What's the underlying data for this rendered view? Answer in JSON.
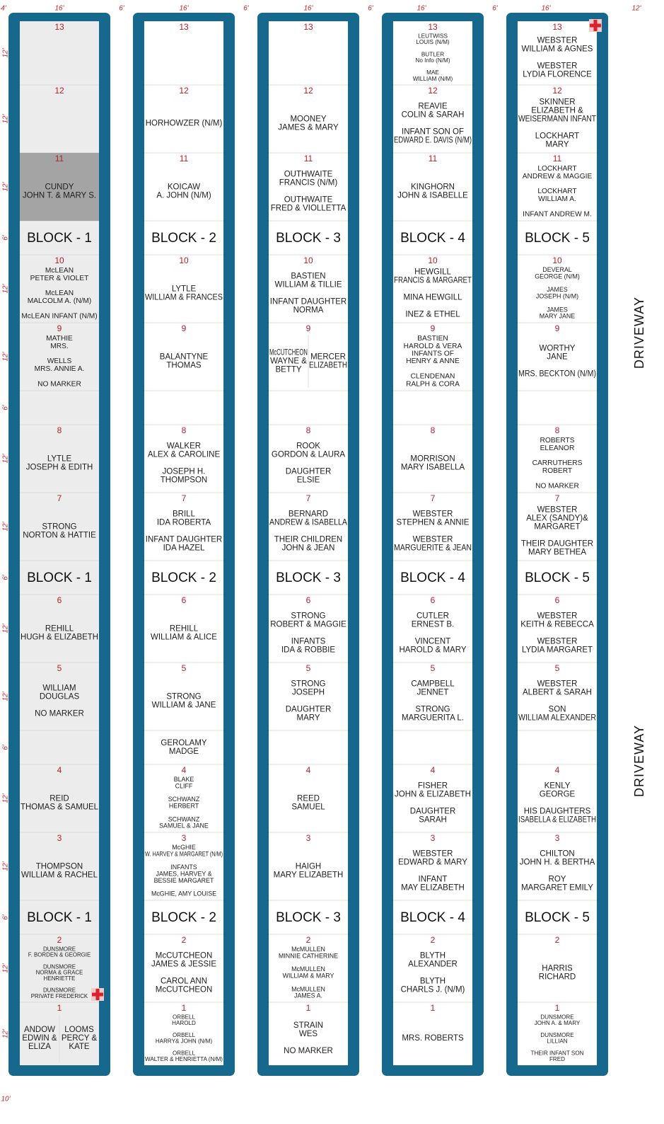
{
  "dimensions": {
    "top": [
      "4'",
      "16'",
      "6'",
      "16'",
      "6'",
      "16'",
      "6'",
      "16'",
      "6'",
      "16'",
      "12'"
    ],
    "side": [
      "12'",
      "12'",
      "12'",
      "6'",
      "12'",
      "12'",
      "6'",
      "12'",
      "12'",
      "6'",
      "12'",
      "12'",
      "6'",
      "12'",
      "12'",
      "6'",
      "12'",
      "12'"
    ],
    "bottom": "10'"
  },
  "driveway": "DRIVEWAY",
  "blocks": [
    {
      "label": "BLOCK - 1",
      "lots": [
        {
          "number": 13
        },
        {
          "number": 12
        },
        {
          "number": 11,
          "groups": [
            [
              "CUNDY",
              "JOHN T. & MARY S."
            ]
          ]
        },
        {
          "number": 10,
          "groups": [
            [
              "McLEAN",
              "PETER & VIOLET"
            ],
            [
              "McLEAN",
              "MALCOLM A. (N/M)"
            ],
            [
              "McLEAN INFANT (N/M)"
            ]
          ]
        },
        {
          "number": 9,
          "groups": [
            [
              "MATHIE",
              "MRS."
            ],
            [
              "WELLS",
              "MRS. ANNIE A."
            ],
            [
              "NO MARKER"
            ]
          ]
        },
        {
          "number": 8,
          "groups": [
            [
              "LYTLE",
              "JOSEPH & EDITH"
            ]
          ]
        },
        {
          "number": 7,
          "groups": [
            [
              "STRONG",
              "NORTON & HATTIE"
            ]
          ]
        },
        {
          "number": 6,
          "groups": [
            [
              "REHILL",
              "HUGH & ELIZABETH"
            ]
          ]
        },
        {
          "number": 5,
          "groups": [
            [
              "WILLIAM",
              "DOUGLAS"
            ],
            [
              "NO MARKER"
            ]
          ]
        },
        {
          "number": 4,
          "groups": [
            [
              "REID",
              "THOMAS & SAMUEL"
            ]
          ]
        },
        {
          "number": 3,
          "groups": [
            [
              "THOMPSON",
              "WILLIAM & RACHEL"
            ]
          ]
        },
        {
          "number": 2,
          "groups": [
            [
              "DUNSMORE",
              "F. BORDEN & GEORGIE"
            ],
            [
              "DUNSMORE",
              "NORMA & GRACE",
              "HENRIETTE"
            ],
            [
              "DUNSMORE",
              "PRIVATE FREDERICK"
            ]
          ]
        },
        {
          "number": 1,
          "sides": [
            [
              "ANDOW",
              "EDWIN &",
              "ELIZA"
            ],
            [
              "LOOMS",
              "PERCY &",
              "KATE"
            ]
          ]
        }
      ]
    },
    {
      "label": "BLOCK - 2",
      "lots": [
        {
          "number": 13
        },
        {
          "number": 12,
          "groups": [
            [
              "HORHOWZER (N/M)"
            ]
          ]
        },
        {
          "number": 11,
          "groups": [
            [
              "KOICAW",
              "A. JOHN (N/M)"
            ]
          ]
        },
        {
          "number": 10,
          "groups": [
            [
              "LYTLE",
              "WILLIAM & FRANCES"
            ]
          ]
        },
        {
          "number": 9,
          "groups": [
            [
              "BALANTYNE",
              "THOMAS"
            ]
          ]
        },
        {
          "number": 8,
          "groups": [
            [
              "WALKER",
              "ALEX & CAROLINE"
            ],
            [
              "JOSEPH H.",
              "THOMPSON"
            ]
          ]
        },
        {
          "number": 7,
          "groups": [
            [
              "BRILL",
              "IDA ROBERTA"
            ],
            [
              "INFANT DAUGHTER",
              "IDA HAZEL"
            ]
          ]
        },
        {
          "number": 6,
          "groups": [
            [
              "REHILL",
              "WILLIAM & ALICE"
            ]
          ]
        },
        {
          "number": 5,
          "groups": [
            [
              "STRONG",
              "WILLIAM & JANE"
            ]
          ]
        },
        {
          "groups": [
            [
              "GEROLAMY",
              "MADGE"
            ]
          ]
        },
        {
          "number": 4,
          "groups": [
            [
              "BLAKE",
              "CLIFF"
            ],
            [
              "SCHWANZ",
              "HERBERT"
            ],
            [
              "SCHWANZ",
              "SAMUEL & JANE"
            ]
          ]
        },
        {
          "number": 3,
          "groups": [
            [
              "McGHIE",
              "W. HARVEY & MARGARET (N/M)"
            ],
            [
              "INFANTS",
              "JAMES, HARVEY &",
              "BESSIE MARGARET"
            ],
            [
              "McGHIE, AMY LOUISE"
            ]
          ]
        },
        {
          "number": 2,
          "groups": [
            [
              "McCUTCHEON",
              "JAMES & JESSIE"
            ],
            [
              "CAROL ANN",
              "McCUTCHEON"
            ]
          ]
        },
        {
          "number": 1,
          "groups": [
            [
              "ORBELL",
              "HAROLD"
            ],
            [
              "ORBELL",
              "HARRY& JOHN (N/M)"
            ],
            [
              "ORBELL",
              "WALTER & HENRIETTA (N/M)"
            ]
          ]
        }
      ]
    },
    {
      "label": "BLOCK - 3",
      "lots": [
        {
          "number": 13
        },
        {
          "number": 12,
          "groups": [
            [
              "MOONEY",
              "JAMES & MARY"
            ]
          ]
        },
        {
          "number": 11,
          "groups": [
            [
              "OUTHWAITE",
              "FRANCIS (N/M)"
            ],
            [
              "OUTHWAITE",
              "FRED & VIOLLETTA"
            ]
          ]
        },
        {
          "number": 10,
          "groups": [
            [
              "BASTIEN",
              "WILLIAM & TILLIE"
            ],
            [
              "INFANT DAUGHTER",
              "NORMA"
            ]
          ]
        },
        {
          "number": 9,
          "sides": [
            [
              "McCUTCHEON",
              "WAYNE &",
              "BETTY"
            ],
            [
              "MERCER",
              "ELIZABETH"
            ]
          ]
        },
        {
          "number": 8,
          "groups": [
            [
              "ROOK",
              "GORDON & LAURA"
            ],
            [
              "DAUGHTER",
              "ELSIE"
            ]
          ]
        },
        {
          "number": 7,
          "groups": [
            [
              "BERNARD",
              "ANDREW & ISABELLA"
            ],
            [
              "THEIR CHILDREN",
              "JOHN & JEAN"
            ]
          ]
        },
        {
          "number": 6,
          "groups": [
            [
              "STRONG",
              "ROBERT & MAGGIE"
            ],
            [
              "INFANTS",
              "IDA & ROBBIE"
            ]
          ]
        },
        {
          "number": 5,
          "groups": [
            [
              "STRONG",
              "JOSEPH"
            ],
            [
              "DAUGHTER",
              "MARY"
            ]
          ]
        },
        {
          "number": 4,
          "groups": [
            [
              "REED",
              "SAMUEL"
            ]
          ]
        },
        {
          "number": 3,
          "groups": [
            [
              "HAIGH",
              "MARY ELIZABETH"
            ]
          ]
        },
        {
          "number": 2,
          "groups": [
            [
              "McMULLEN",
              "MINNIE CATHERINE"
            ],
            [
              "McMULLEN",
              "WILLIAM & MARY"
            ],
            [
              "McMULLEN",
              "JAMES A."
            ]
          ]
        },
        {
          "number": 1,
          "groups": [
            [
              "STRAIN",
              "WES"
            ],
            [
              "NO MARKER"
            ]
          ]
        }
      ]
    },
    {
      "label": "BLOCK - 4",
      "lots": [
        {
          "number": 13,
          "groups": [
            [
              "LEUTWISS",
              "LOUIS (N/M)"
            ],
            [
              "BUTLER",
              "No Info (N/M)"
            ],
            [
              "MAE",
              "WILLIAM (N/M)"
            ]
          ]
        },
        {
          "number": 12,
          "groups": [
            [
              "REAVIE",
              "COLIN & SARAH"
            ],
            [
              "INFANT SON OF",
              "EDWARD E. DAVIS (N/M)"
            ]
          ]
        },
        {
          "number": 11,
          "groups": [
            [
              "KINGHORN",
              "JOHN & ISABELLE"
            ]
          ]
        },
        {
          "number": 10,
          "groups": [
            [
              "HEWGILL",
              "FRANCIS & MARGARET"
            ],
            [
              "MINA HEWGILL"
            ],
            [
              "INEZ & ETHEL"
            ]
          ]
        },
        {
          "number": 9,
          "groups": [
            [
              "BASTIEN",
              "HAROLD & VERA",
              "INFANTS OF",
              "HENRY & ANNE"
            ],
            [
              "CLENDENAN",
              "RALPH & CORA"
            ]
          ]
        },
        {
          "number": 8,
          "groups": [
            [
              "MORRISON",
              "MARY ISABELLA"
            ]
          ]
        },
        {
          "number": 7,
          "groups": [
            [
              "WEBSTER",
              "STEPHEN & ANNIE"
            ],
            [
              "WEBSTER",
              "MARGUERITE & JEAN"
            ]
          ]
        },
        {
          "number": 6,
          "groups": [
            [
              "CUTLER",
              "ERNEST B."
            ],
            [
              "VINCENT",
              "HAROLD & MARY"
            ]
          ]
        },
        {
          "number": 5,
          "groups": [
            [
              "CAMPBELL",
              "JENNET"
            ],
            [
              "STRONG",
              "MARGUERITA L."
            ]
          ]
        },
        {
          "number": 4,
          "groups": [
            [
              "FISHER",
              "JOHN & ELIZABETH"
            ],
            [
              "DAUGHTER",
              "SARAH"
            ]
          ]
        },
        {
          "number": 3,
          "groups": [
            [
              "WEBSTER",
              "EDWARD & MARY"
            ],
            [
              "INFANT",
              "MAY ELIZABETH"
            ]
          ]
        },
        {
          "number": 2,
          "groups": [
            [
              "BLYTH",
              "ALEXANDER"
            ],
            [
              "BLYTH",
              "CHARLS J. (N/M)"
            ]
          ]
        },
        {
          "number": 1,
          "groups": [
            [
              "MRS. ROBERTS"
            ]
          ]
        }
      ]
    },
    {
      "label": "BLOCK - 5",
      "lots": [
        {
          "number": 13,
          "groups": [
            [
              "WEBSTER",
              "WILLIAM & AGNES"
            ],
            [
              "WEBSTER",
              "LYDIA FLORENCE"
            ]
          ]
        },
        {
          "number": 12,
          "groups": [
            [
              "SKINNER",
              "ELIZABETH &",
              "WEISERMANN INFANT"
            ],
            [
              "LOCKHART",
              "MARY"
            ]
          ]
        },
        {
          "number": 11,
          "groups": [
            [
              "LOCKHART",
              "ANDREW & MAGGIE"
            ],
            [
              "LOCKHART",
              "WILLIAM A."
            ],
            [
              "INFANT ANDREW M."
            ]
          ]
        },
        {
          "number": 10,
          "groups": [
            [
              "DEVERAL",
              "GEORGE (N/M)"
            ],
            [
              "JAMES",
              "JOSEPH (N/M)"
            ],
            [
              "JAMES",
              "MARY JANE"
            ]
          ]
        },
        {
          "number": 9,
          "groups": [
            [
              "WORTHY",
              "JANE"
            ],
            [
              "MRS. BECKTON (N/M)"
            ]
          ]
        },
        {
          "number": 8,
          "groups": [
            [
              "ROBERTS",
              "ELEANOR"
            ],
            [
              "CARRUTHERS",
              "ROBERT"
            ],
            [
              "NO MARKER"
            ]
          ]
        },
        {
          "number": 7,
          "groups": [
            [
              "WEBSTER",
              "ALEX (SANDY)&",
              "MARGARET"
            ],
            [
              "THEIR DAUGHTER",
              "MARY BETHEA"
            ]
          ]
        },
        {
          "number": 6,
          "groups": [
            [
              "WEBSTER",
              "KEITH & REBECCA"
            ],
            [
              "WEBSTER",
              "LYDIA MARGARET"
            ]
          ]
        },
        {
          "number": 5,
          "groups": [
            [
              "WEBSTER",
              "ALBERT & SARAH"
            ],
            [
              "SON",
              "WILLIAM ALEXANDER"
            ]
          ]
        },
        {
          "number": 4,
          "groups": [
            [
              "KENLY",
              "GEORGE"
            ],
            [
              "HIS DAUGHTERS",
              "ISABELLA & ELIZABETH"
            ]
          ]
        },
        {
          "number": 3,
          "groups": [
            [
              "CHILTON",
              "JOHN H. & BERTHA"
            ],
            [
              "ROY",
              "MARGARET EMILY"
            ]
          ]
        },
        {
          "number": 2,
          "groups": [
            [
              "HARRIS",
              "RICHARD"
            ]
          ]
        },
        {
          "number": 1,
          "groups": [
            [
              "DUNSMORE",
              "JOHN A. & MARY"
            ],
            [
              "DUNSMORE",
              "LILLIAN"
            ],
            [
              "THEIR INFANT SON",
              "FRED"
            ]
          ]
        }
      ]
    }
  ]
}
